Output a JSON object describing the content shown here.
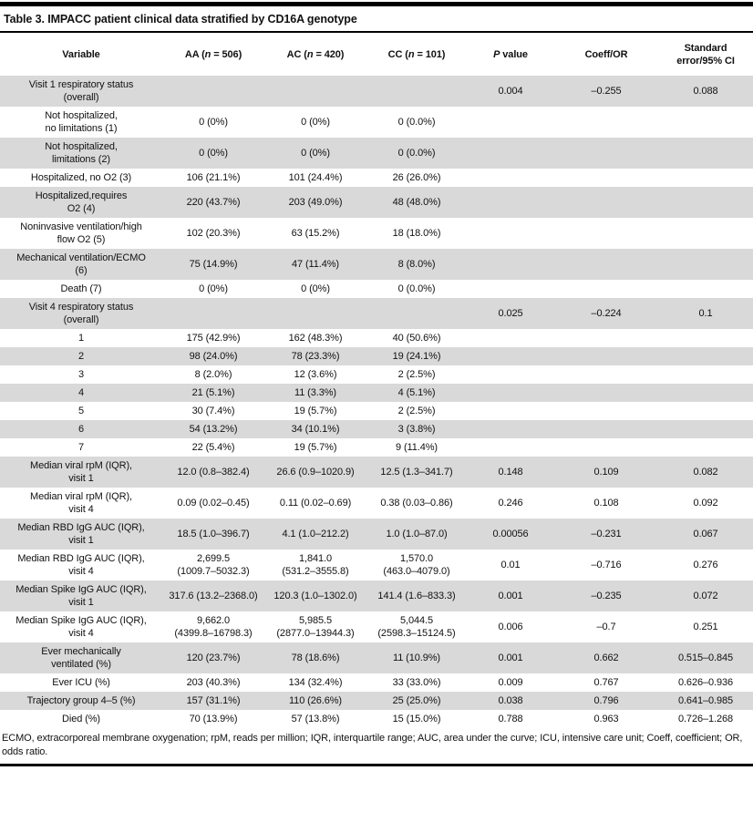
{
  "title": "Table 3. IMPACC patient clinical data stratified by CD16A genotype",
  "colors": {
    "row_shade": "#d9d9d9",
    "rule": "#000000",
    "text": "#111111",
    "background": "#ffffff"
  },
  "table": {
    "columns": [
      {
        "label": "Variable"
      },
      {
        "pre": "AA (",
        "it": "n",
        "post": " = 506)"
      },
      {
        "pre": "AC (",
        "it": "n",
        "post": " = 420)"
      },
      {
        "pre": "CC (",
        "it": "n",
        "post": " = 101)"
      },
      {
        "it": "P",
        "post": " value"
      },
      {
        "label": "Coeff/OR"
      },
      {
        "label": "Standard\nerror/95% CI"
      }
    ],
    "rows": [
      {
        "label": "Visit 1 respiratory status\n(overall)",
        "values": [
          "",
          "",
          "",
          "0.004",
          "–0.255",
          "0.088"
        ]
      },
      {
        "label": "Not hospitalized,\nno limitations (1)",
        "values": [
          "0 (0%)",
          "0 (0%)",
          "0 (0.0%)",
          "",
          "",
          ""
        ]
      },
      {
        "label": "Not hospitalized,\nlimitations (2)",
        "values": [
          "0 (0%)",
          "0 (0%)",
          "0 (0.0%)",
          "",
          "",
          ""
        ]
      },
      {
        "label": "Hospitalized, no O2 (3)",
        "values": [
          "106 (21.1%)",
          "101 (24.4%)",
          "26 (26.0%)",
          "",
          "",
          ""
        ]
      },
      {
        "label": "Hospitalized,requires\nO2 (4)",
        "values": [
          "220 (43.7%)",
          "203 (49.0%)",
          "48 (48.0%)",
          "",
          "",
          ""
        ]
      },
      {
        "label": "Noninvasive ventilation/high\nflow O2 (5)",
        "values": [
          "102 (20.3%)",
          "63 (15.2%)",
          "18 (18.0%)",
          "",
          "",
          ""
        ]
      },
      {
        "label": "Mechanical ventilation/ECMO\n(6)",
        "values": [
          "75 (14.9%)",
          "47 (11.4%)",
          "8 (8.0%)",
          "",
          "",
          ""
        ]
      },
      {
        "label": "Death (7)",
        "values": [
          "0 (0%)",
          "0 (0%)",
          "0 (0.0%)",
          "",
          "",
          ""
        ]
      },
      {
        "label": "Visit 4 respiratory status\n(overall)",
        "values": [
          "",
          "",
          "",
          "0.025",
          "–0.224",
          "0.1"
        ]
      },
      {
        "label": "1",
        "values": [
          "175 (42.9%)",
          "162 (48.3%)",
          "40 (50.6%)",
          "",
          "",
          ""
        ]
      },
      {
        "label": "2",
        "values": [
          "98 (24.0%)",
          "78 (23.3%)",
          "19 (24.1%)",
          "",
          "",
          ""
        ]
      },
      {
        "label": "3",
        "values": [
          "8 (2.0%)",
          "12 (3.6%)",
          "2 (2.5%)",
          "",
          "",
          ""
        ]
      },
      {
        "label": "4",
        "values": [
          "21 (5.1%)",
          "11 (3.3%)",
          "4 (5.1%)",
          "",
          "",
          ""
        ]
      },
      {
        "label": "5",
        "values": [
          "30 (7.4%)",
          "19 (5.7%)",
          "2 (2.5%)",
          "",
          "",
          ""
        ]
      },
      {
        "label": "6",
        "values": [
          "54 (13.2%)",
          "34 (10.1%)",
          "3 (3.8%)",
          "",
          "",
          ""
        ]
      },
      {
        "label": "7",
        "values": [
          "22 (5.4%)",
          "19 (5.7%)",
          "9 (11.4%)",
          "",
          "",
          ""
        ]
      },
      {
        "label": "Median viral rpM (IQR),\nvisit 1",
        "values": [
          "12.0 (0.8–382.4)",
          "26.6 (0.9–1020.9)",
          "12.5 (1.3–341.7)",
          "0.148",
          "0.109",
          "0.082"
        ]
      },
      {
        "label": "Median viral rpM (IQR),\nvisit 4",
        "values": [
          "0.09 (0.02–0.45)",
          "0.11 (0.02–0.69)",
          "0.38 (0.03–0.86)",
          "0.246",
          "0.108",
          "0.092"
        ]
      },
      {
        "label": "Median RBD IgG AUC (IQR),\nvisit 1",
        "values": [
          "18.5 (1.0–396.7)",
          "4.1 (1.0–212.2)",
          "1.0 (1.0–87.0)",
          "0.00056",
          "–0.231",
          "0.067"
        ]
      },
      {
        "label": "Median RBD IgG AUC (IQR),\nvisit 4",
        "values": [
          "2,699.5\n(1009.7–5032.3)",
          "1,841.0\n(531.2–3555.8)",
          "1,570.0\n(463.0–4079.0)",
          "0.01",
          "–0.716",
          "0.276"
        ]
      },
      {
        "label": "Median Spike IgG AUC (IQR),\nvisit 1",
        "values": [
          "317.6 (13.2–2368.0)",
          "120.3 (1.0–1302.0)",
          "141.4 (1.6–833.3)",
          "0.001",
          "–0.235",
          "0.072"
        ]
      },
      {
        "label": "Median Spike IgG AUC (IQR),\nvisit 4",
        "values": [
          "9,662.0\n(4399.8–16798.3)",
          "5,985.5\n(2877.0–13944.3)",
          "5,044.5\n(2598.3–15124.5)",
          "0.006",
          "–0.7",
          "0.251"
        ]
      },
      {
        "label": "Ever mechanically\nventilated (%)",
        "values": [
          "120 (23.7%)",
          "78 (18.6%)",
          "11 (10.9%)",
          "0.001",
          "0.662",
          "0.515–0.845"
        ]
      },
      {
        "label": "Ever ICU (%)",
        "values": [
          "203 (40.3%)",
          "134 (32.4%)",
          "33 (33.0%)",
          "0.009",
          "0.767",
          "0.626–0.936"
        ]
      },
      {
        "label": "Trajectory group 4–5 (%)",
        "values": [
          "157 (31.1%)",
          "110 (26.6%)",
          "25 (25.0%)",
          "0.038",
          "0.796",
          "0.641–0.985"
        ]
      },
      {
        "label": "Died (%)",
        "values": [
          "70 (13.9%)",
          "57 (13.8%)",
          "15 (15.0%)",
          "0.788",
          "0.963",
          "0.726–1.268"
        ]
      }
    ]
  },
  "footnote": "ECMO, extracorporeal membrane oxygenation; rpM, reads per million; IQR, interquartile range; AUC, area under the curve; ICU, intensive care unit; Coeff, coefficient; OR, odds ratio."
}
